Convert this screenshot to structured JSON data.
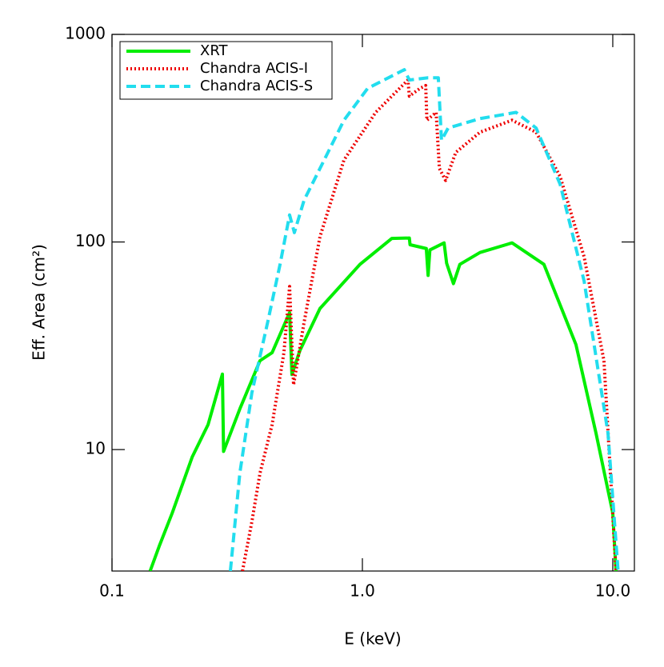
{
  "chart_data": {
    "type": "line",
    "xlabel": "E (keV)",
    "ylabel": "Eff. Area (cm²)",
    "xscale": "log",
    "yscale": "log",
    "xlim": [
      0.1,
      12.2
    ],
    "ylim": [
      2.6,
      1000
    ],
    "xticks": [
      0.1,
      {
        "value": 1,
        "label": "1.0"
      },
      {
        "value": 10,
        "label": "10.0"
      }
    ],
    "yticks": [
      10,
      100,
      1000
    ],
    "legend": "upper left",
    "series": [
      {
        "name": "XRT",
        "color": "#00ee00",
        "dash": "solid",
        "x": [
          0.142,
          0.155,
          0.174,
          0.209,
          0.242,
          0.276,
          0.279,
          0.324,
          0.39,
          0.436,
          0.512,
          0.523,
          0.563,
          0.677,
          0.978,
          1.31,
          1.54,
          1.55,
          1.8,
          1.83,
          1.86,
          2.12,
          2.17,
          2.31,
          2.45,
          2.95,
          3.96,
          5.31,
          7.13,
          8.57,
          10,
          10.3
        ],
        "values": [
          2.6,
          3.47,
          4.95,
          9.2,
          13.2,
          23.1,
          9.8,
          15.7,
          26.8,
          29.3,
          45.7,
          23,
          30,
          47.8,
          78,
          104,
          104.5,
          97,
          93,
          69,
          91.5,
          99,
          79,
          63,
          78,
          89,
          99,
          78,
          32,
          12,
          4.95,
          2.6
        ]
      },
      {
        "name": "Chandra ACIS-I",
        "color": "#ee0000",
        "dash": "dotted",
        "x": [
          0.332,
          0.362,
          0.39,
          0.436,
          0.486,
          0.512,
          0.531,
          0.585,
          0.677,
          0.844,
          1.13,
          1.52,
          1.54,
          1.7,
          1.79,
          1.81,
          1.97,
          2.03,
          2.15,
          2.36,
          2.95,
          3.96,
          4.94,
          6.16,
          7.68,
          9.22,
          10.3
        ],
        "values": [
          2.6,
          4.5,
          7.7,
          13.2,
          29.3,
          61,
          20.5,
          41,
          106,
          248,
          421,
          603,
          504,
          550,
          567,
          386,
          421,
          226,
          198,
          270,
          338,
          386,
          338,
          207,
          85,
          26.8,
          2.6
        ]
      },
      {
        "name": "Chandra ACIS-S",
        "color": "#22ddee",
        "dash": "dashed",
        "x": [
          0.297,
          0.324,
          0.362,
          0.42,
          0.469,
          0.512,
          0.535,
          0.585,
          0.677,
          0.844,
          1.05,
          1.47,
          1.54,
          1.83,
          2.01,
          2.07,
          2.2,
          2.95,
          4.11,
          4.94,
          6.16,
          7.68,
          9.57,
          10.5
        ],
        "values": [
          2.6,
          7.7,
          18.8,
          41.9,
          78,
          135,
          111,
          159,
          226,
          386,
          550,
          676,
          603,
          618,
          618,
          309,
          354,
          393,
          421,
          354,
          190,
          65,
          12,
          2.6
        ]
      }
    ]
  }
}
